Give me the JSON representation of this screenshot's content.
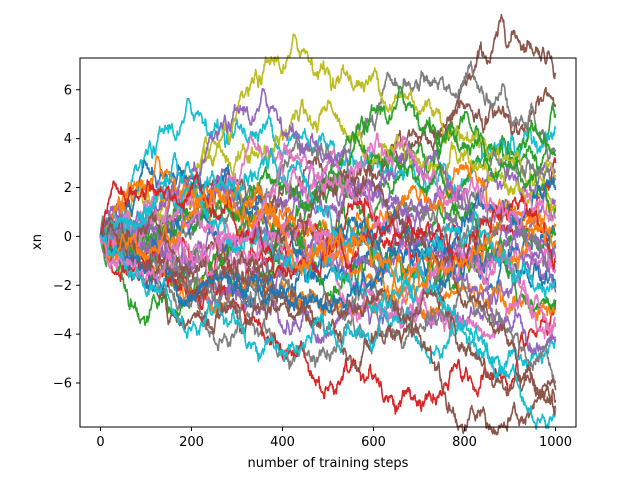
{
  "chart_data": {
    "type": "line",
    "title": "",
    "xlabel": "number of training steps",
    "ylabel": "xn",
    "xlim": [
      -45,
      1045
    ],
    "ylim": [
      -7.8,
      7.3
    ],
    "xticks": [
      0,
      200,
      400,
      600,
      800,
      1000
    ],
    "yticks": [
      -6,
      -4,
      -2,
      0,
      2,
      4,
      6
    ],
    "grid": false,
    "legend": "none",
    "steps": 1000,
    "colors": [
      "#1f77b4",
      "#ff7f0e",
      "#2ca02c",
      "#d62728",
      "#9467bd",
      "#8c564b",
      "#e377c2",
      "#7f7f7f",
      "#bcbd22",
      "#17becf"
    ],
    "series": [
      {
        "color": "#8c564b",
        "end": 6.7
      },
      {
        "color": "#8c564b",
        "end": 5.4
      },
      {
        "color": "#2ca02c",
        "end": 5.0
      },
      {
        "color": "#17becf",
        "end": 4.4
      },
      {
        "color": "#7f7f7f",
        "end": 3.55
      },
      {
        "color": "#2ca02c",
        "end": 3.3
      },
      {
        "color": "#d62728",
        "end": 3.0
      },
      {
        "color": "#9467bd",
        "end": 2.6
      },
      {
        "color": "#bcbd22",
        "end": 2.45
      },
      {
        "color": "#7f7f7f",
        "end": 2.3
      },
      {
        "color": "#9467bd",
        "end": 1.5
      },
      {
        "color": "#ff7f0e",
        "end": 1.3
      },
      {
        "color": "#bcbd22",
        "end": 1.1
      },
      {
        "color": "#2ca02c",
        "end": 1.05
      },
      {
        "color": "#ff7f0e",
        "end": 0.5
      },
      {
        "color": "#1f77b4",
        "end": 0.15
      },
      {
        "color": "#2ca02c",
        "end": 0.1
      },
      {
        "color": "#9467bd",
        "end": -0.2
      },
      {
        "color": "#7f7f7f",
        "end": -0.5
      },
      {
        "color": "#9467bd",
        "end": -0.9
      },
      {
        "color": "#e377c2",
        "end": -1.35
      },
      {
        "color": "#1f77b4",
        "end": -2.1
      },
      {
        "color": "#9467bd",
        "end": -2.3
      },
      {
        "color": "#d62728",
        "end": -2.6
      },
      {
        "color": "#ff7f0e",
        "end": -2.85
      },
      {
        "color": "#2ca02c",
        "end": -3.0
      },
      {
        "color": "#e377c2",
        "end": -3.3
      },
      {
        "color": "#e377c2",
        "end": -3.7
      },
      {
        "color": "#17becf",
        "end": -4.1
      },
      {
        "color": "#9467bd",
        "end": -4.2
      },
      {
        "color": "#7f7f7f",
        "end": -5.9
      },
      {
        "color": "#8c564b",
        "end": -6.3
      },
      {
        "color": "#8c564b",
        "end": -6.7
      },
      {
        "color": "#17becf",
        "end": -7.1
      },
      {
        "color": "#8c564b",
        "end": -7.05
      },
      {
        "color": "#1f77b4",
        "end": 1.9
      },
      {
        "color": "#d62728",
        "end": -1.0
      },
      {
        "color": "#ff7f0e",
        "end": -0.3
      },
      {
        "color": "#e377c2",
        "end": 0.8
      },
      {
        "color": "#17becf",
        "end": -1.8
      }
    ]
  }
}
